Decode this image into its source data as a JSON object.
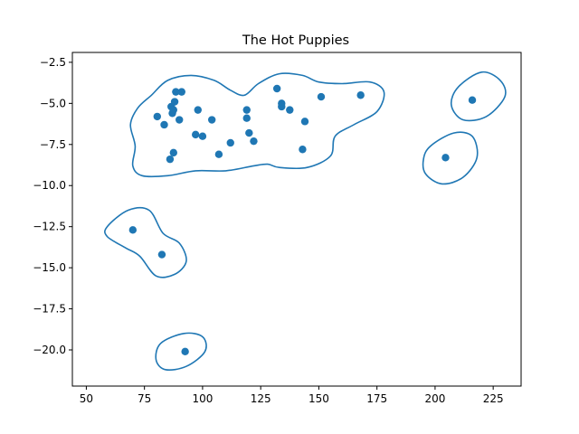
{
  "chart_data": {
    "type": "scatter",
    "title": "The Hot Puppies",
    "xlabel": "",
    "ylabel": "",
    "xlim": [
      44,
      237
    ],
    "ylim": [
      -22.2,
      -1.9
    ],
    "grid": false,
    "x_ticks": [
      50,
      75,
      100,
      125,
      150,
      175,
      200,
      225
    ],
    "x_tick_labels": [
      "50",
      "75",
      "100",
      "125",
      "150",
      "175",
      "200",
      "225"
    ],
    "y_ticks": [
      -2.5,
      -5.0,
      -7.5,
      -10.0,
      -12.5,
      -15.0,
      -17.5,
      -20.0
    ],
    "y_tick_labels": [
      "−2.5",
      "−5.0",
      "−7.5",
      "−10.0",
      "−12.5",
      "−15.0",
      "−17.5",
      "−20.0"
    ],
    "marker_color": "#1f77b4",
    "contour_color": "#1f77b4",
    "points": [
      {
        "x": 80.5,
        "y": -5.8
      },
      {
        "x": 83.5,
        "y": -6.3
      },
      {
        "x": 86.5,
        "y": -5.2
      },
      {
        "x": 87.0,
        "y": -5.6
      },
      {
        "x": 87.5,
        "y": -5.4
      },
      {
        "x": 88.0,
        "y": -4.9
      },
      {
        "x": 88.5,
        "y": -4.3
      },
      {
        "x": 91.0,
        "y": -4.3
      },
      {
        "x": 90.0,
        "y": -6.0
      },
      {
        "x": 97.0,
        "y": -6.9
      },
      {
        "x": 98.0,
        "y": -5.4
      },
      {
        "x": 100.0,
        "y": -7.0
      },
      {
        "x": 104.0,
        "y": -6.0
      },
      {
        "x": 107.0,
        "y": -8.1
      },
      {
        "x": 112.0,
        "y": -7.4
      },
      {
        "x": 119.0,
        "y": -5.4
      },
      {
        "x": 119.0,
        "y": -5.9
      },
      {
        "x": 120.0,
        "y": -6.8
      },
      {
        "x": 122.0,
        "y": -7.3
      },
      {
        "x": 132.0,
        "y": -4.1
      },
      {
        "x": 134.0,
        "y": -5.0
      },
      {
        "x": 134.0,
        "y": -5.2
      },
      {
        "x": 137.5,
        "y": -5.4
      },
      {
        "x": 143.0,
        "y": -7.8
      },
      {
        "x": 144.0,
        "y": -6.1
      },
      {
        "x": 151.0,
        "y": -4.6
      },
      {
        "x": 168.0,
        "y": -4.5
      },
      {
        "x": 86.0,
        "y": -8.4
      },
      {
        "x": 87.5,
        "y": -8.0
      },
      {
        "x": 204.5,
        "y": -8.3
      },
      {
        "x": 216.0,
        "y": -4.8
      },
      {
        "x": 70.0,
        "y": -12.7
      },
      {
        "x": 82.5,
        "y": -14.2
      },
      {
        "x": 92.5,
        "y": -20.1
      }
    ],
    "contours": [
      {
        "closed": true,
        "points": [
          [
            78,
            -4.5
          ],
          [
            85,
            -3.6
          ],
          [
            95,
            -3.3
          ],
          [
            105,
            -3.6
          ],
          [
            112,
            -4.2
          ],
          [
            118,
            -4.5
          ],
          [
            124,
            -3.8
          ],
          [
            133,
            -3.2
          ],
          [
            143,
            -3.3
          ],
          [
            150,
            -3.7
          ],
          [
            160,
            -3.8
          ],
          [
            172,
            -3.7
          ],
          [
            178,
            -4.3
          ],
          [
            175,
            -5.5
          ],
          [
            165,
            -6.3
          ],
          [
            157,
            -7.0
          ],
          [
            155,
            -8.2
          ],
          [
            145,
            -8.9
          ],
          [
            133,
            -8.9
          ],
          [
            128,
            -8.7
          ],
          [
            122,
            -8.8
          ],
          [
            110,
            -9.1
          ],
          [
            97,
            -9.1
          ],
          [
            85,
            -9.4
          ],
          [
            74,
            -9.4
          ],
          [
            70,
            -8.8
          ],
          [
            71,
            -7.6
          ],
          [
            69,
            -6.3
          ],
          [
            72,
            -5.3
          ]
        ]
      },
      {
        "closed": true,
        "points": [
          [
            210,
            -4.0
          ],
          [
            220,
            -3.1
          ],
          [
            228,
            -3.6
          ],
          [
            230,
            -4.6
          ],
          [
            222,
            -5.8
          ],
          [
            212,
            -6.0
          ],
          [
            207,
            -5.1
          ]
        ]
      },
      {
        "closed": true,
        "points": [
          [
            198,
            -7.6
          ],
          [
            208,
            -6.8
          ],
          [
            216,
            -7.0
          ],
          [
            218,
            -8.3
          ],
          [
            212,
            -9.5
          ],
          [
            203,
            -9.9
          ],
          [
            196,
            -9.3
          ],
          [
            195,
            -8.4
          ]
        ]
      },
      {
        "closed": true,
        "points": [
          [
            59,
            -12.5
          ],
          [
            68,
            -11.5
          ],
          [
            77,
            -11.5
          ],
          [
            83,
            -12.9
          ],
          [
            90,
            -13.5
          ],
          [
            93,
            -14.6
          ],
          [
            88,
            -15.4
          ],
          [
            80,
            -15.5
          ],
          [
            73,
            -14.3
          ],
          [
            67,
            -13.8
          ],
          [
            59,
            -13.1
          ]
        ]
      },
      {
        "closed": true,
        "points": [
          [
            82,
            -19.6
          ],
          [
            92,
            -19.0
          ],
          [
            100,
            -19.2
          ],
          [
            101,
            -20.1
          ],
          [
            93,
            -21.0
          ],
          [
            84,
            -21.2
          ],
          [
            80,
            -20.6
          ]
        ]
      }
    ]
  }
}
